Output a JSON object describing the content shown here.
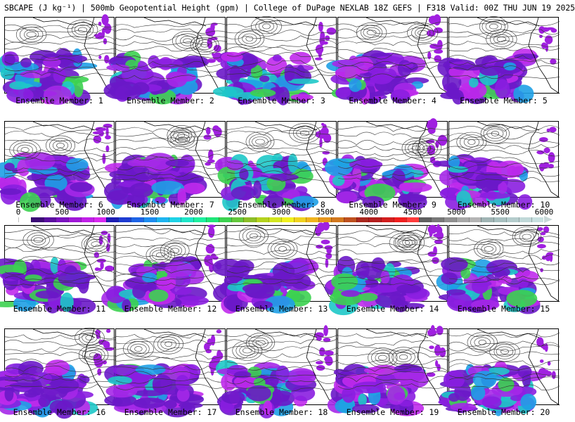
{
  "title": "SBCAPE (J kg⁻¹) | 500mb Geopotential Height (gpm) | College of DuPage NEXLAB 18Z GEFS | F318 Valid: 00Z THU JUN 19 2025",
  "members": [
    "Ensemble Member: 1",
    "Ensemble Member: 2",
    "Ensemble Member: 3",
    "Ensemble Member: 4",
    "Ensemble Member: 5",
    "Ensemble Member: 6",
    "Ensemble Member: 7",
    "Ensemble Member: 8",
    "Ensemble Member: 9",
    "Ensemble Member: 10",
    "Ensemble Member: 11",
    "Ensemble Member: 12",
    "Ensemble Member: 13",
    "Ensemble Member: 14",
    "Ensemble Member: 15",
    "Ensemble Member: 16",
    "Ensemble Member: 17",
    "Ensemble Member: 18",
    "Ensemble Member: 19",
    "Ensemble Member: 20"
  ],
  "colorbar": {
    "ticks": [
      "0",
      "500",
      "1000",
      "1500",
      "2000",
      "2500",
      "3000",
      "3500",
      "4000",
      "4500",
      "5000",
      "5500",
      "6000"
    ],
    "colors": [
      "#ffffff",
      "#3c0a78",
      "#5a0ea0",
      "#7a14c0",
      "#a018d8",
      "#c020e8",
      "#d828f0",
      "#1e1eb4",
      "#1e3cd2",
      "#1e64e6",
      "#1e8cf0",
      "#1eb4f0",
      "#1ed2e6",
      "#1ee6c8",
      "#1ef0a0",
      "#1ee678",
      "#3cd250",
      "#64c83c",
      "#8cbe28",
      "#b4d21e",
      "#d2e61e",
      "#f0f01e",
      "#f0d21e",
      "#f0b41e",
      "#e6961e",
      "#d2781e",
      "#be501e",
      "#aa281e",
      "#b41e1e",
      "#d21e1e",
      "#f01e1e",
      "#ff3c3c",
      "#606060",
      "#787878",
      "#909090",
      "#a8a8a8",
      "#b4b4b4",
      "#a0b4b4",
      "#a8c0c0",
      "#b4cccc",
      "#c0d8d8",
      "#c8e0e0"
    ]
  }
}
